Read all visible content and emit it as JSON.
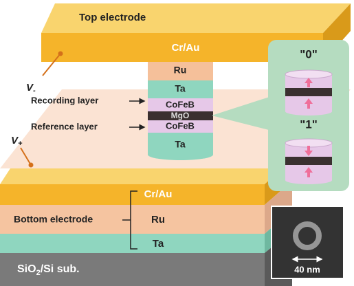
{
  "top_electrode": {
    "label": "Top electrode",
    "material": "Cr/Au"
  },
  "terminals": {
    "v_minus": {
      "symbol": "V",
      "subscript": "-"
    },
    "v_plus": {
      "symbol": "V",
      "subscript": "+"
    }
  },
  "pillar": {
    "layers": [
      "Ru",
      "Ta",
      "CoFeB",
      "MgO",
      "CoFeB",
      "Ta"
    ]
  },
  "annotations": {
    "recording_layer": "Recording layer",
    "reference_layer": "Reference layer"
  },
  "states": [
    "\"0\"",
    "\"1\""
  ],
  "bottom_electrode": {
    "label": "Bottom electrode",
    "layers": [
      "Cr/Au",
      "Ru",
      "Ta"
    ]
  },
  "substrate": {
    "prefix": "SiO",
    "subscript": "2",
    "suffix": "/Si sub."
  },
  "sem_inset": {
    "scale": "40 nm"
  }
}
